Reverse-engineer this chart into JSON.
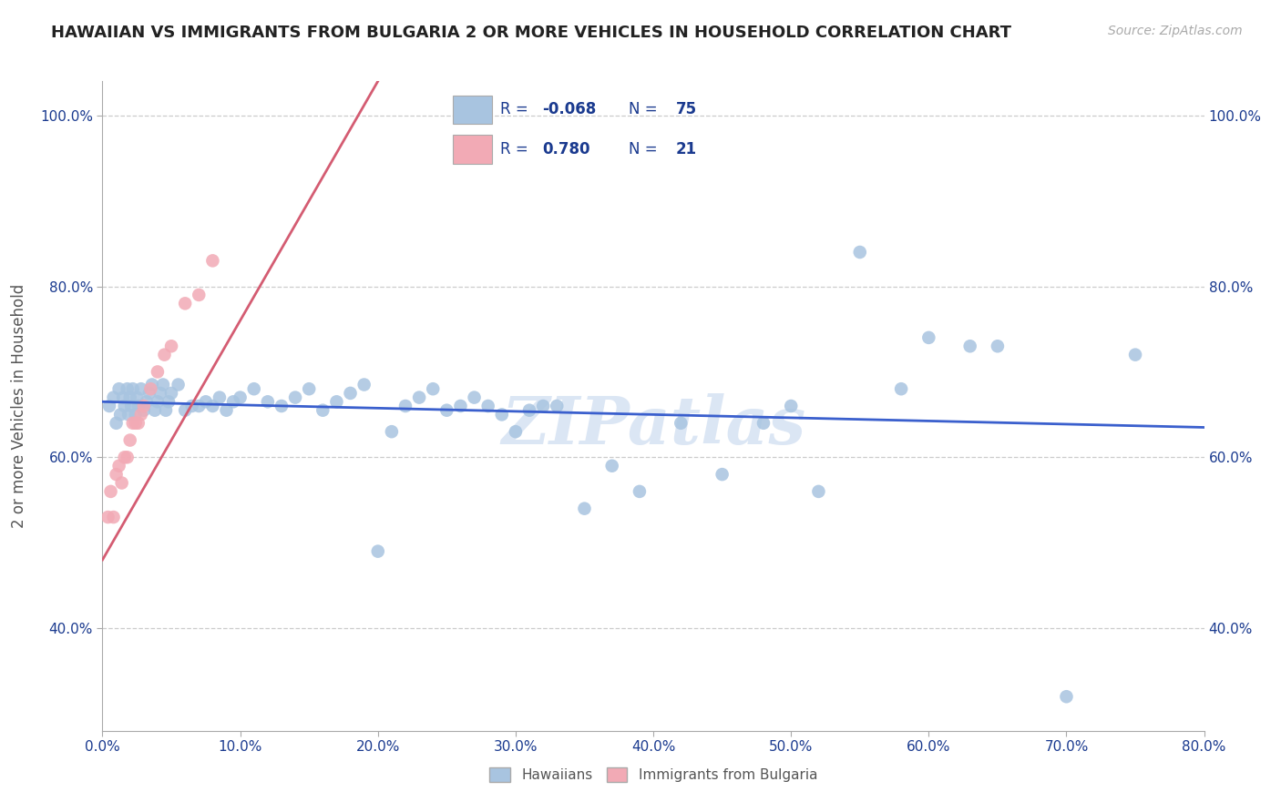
{
  "title": "HAWAIIAN VS IMMIGRANTS FROM BULGARIA 2 OR MORE VEHICLES IN HOUSEHOLD CORRELATION CHART",
  "source": "Source: ZipAtlas.com",
  "ylabel": "2 or more Vehicles in Household",
  "xmin": 0.0,
  "xmax": 0.8,
  "ymin": 0.28,
  "ymax": 1.04,
  "xtick_vals": [
    0.0,
    0.1,
    0.2,
    0.3,
    0.4,
    0.5,
    0.6,
    0.7,
    0.8
  ],
  "xtick_labels": [
    "0.0%",
    "10.0%",
    "20.0%",
    "30.0%",
    "40.0%",
    "50.0%",
    "60.0%",
    "70.0%",
    "80.0%"
  ],
  "ytick_vals": [
    0.4,
    0.6,
    0.8,
    1.0
  ],
  "ytick_labels": [
    "40.0%",
    "60.0%",
    "80.0%",
    "100.0%"
  ],
  "color_blue": "#a8c4e0",
  "color_pink": "#f2aab5",
  "color_blue_line": "#3a5fcd",
  "color_pink_line": "#d45c72",
  "color_grid": "#cccccc",
  "legend_text_color": "#1a3a8f",
  "watermark": "ZIPatlas",
  "watermark_color": "#cddcf0",
  "blue_line_x0": 0.0,
  "blue_line_y0": 0.665,
  "blue_line_x1": 0.8,
  "blue_line_y1": 0.635,
  "pink_line_x0": 0.0,
  "pink_line_y0": 0.48,
  "pink_line_x1": 0.2,
  "pink_line_y1": 1.04,
  "blue_dots_x": [
    0.005,
    0.008,
    0.01,
    0.012,
    0.013,
    0.015,
    0.016,
    0.018,
    0.019,
    0.02,
    0.021,
    0.022,
    0.024,
    0.025,
    0.026,
    0.028,
    0.03,
    0.032,
    0.034,
    0.036,
    0.038,
    0.04,
    0.042,
    0.044,
    0.046,
    0.048,
    0.05,
    0.055,
    0.06,
    0.065,
    0.07,
    0.075,
    0.08,
    0.085,
    0.09,
    0.095,
    0.1,
    0.11,
    0.12,
    0.13,
    0.14,
    0.15,
    0.16,
    0.17,
    0.18,
    0.19,
    0.2,
    0.21,
    0.22,
    0.23,
    0.24,
    0.25,
    0.26,
    0.27,
    0.28,
    0.29,
    0.3,
    0.31,
    0.32,
    0.33,
    0.35,
    0.37,
    0.39,
    0.42,
    0.45,
    0.48,
    0.5,
    0.52,
    0.55,
    0.58,
    0.6,
    0.63,
    0.65,
    0.7,
    0.75
  ],
  "blue_dots_y": [
    0.66,
    0.67,
    0.64,
    0.68,
    0.65,
    0.67,
    0.66,
    0.68,
    0.65,
    0.67,
    0.66,
    0.68,
    0.65,
    0.67,
    0.66,
    0.68,
    0.655,
    0.665,
    0.675,
    0.685,
    0.655,
    0.665,
    0.675,
    0.685,
    0.655,
    0.665,
    0.675,
    0.685,
    0.655,
    0.66,
    0.66,
    0.665,
    0.66,
    0.67,
    0.655,
    0.665,
    0.67,
    0.68,
    0.665,
    0.66,
    0.67,
    0.68,
    0.655,
    0.665,
    0.675,
    0.685,
    0.49,
    0.63,
    0.66,
    0.67,
    0.68,
    0.655,
    0.66,
    0.67,
    0.66,
    0.65,
    0.63,
    0.655,
    0.66,
    0.66,
    0.54,
    0.59,
    0.56,
    0.64,
    0.58,
    0.64,
    0.66,
    0.56,
    0.84,
    0.68,
    0.74,
    0.73,
    0.73,
    0.32,
    0.72
  ],
  "pink_dots_x": [
    0.004,
    0.006,
    0.008,
    0.01,
    0.012,
    0.014,
    0.016,
    0.018,
    0.02,
    0.022,
    0.024,
    0.026,
    0.028,
    0.03,
    0.035,
    0.04,
    0.045,
    0.05,
    0.06,
    0.07,
    0.08
  ],
  "pink_dots_y": [
    0.53,
    0.56,
    0.53,
    0.58,
    0.59,
    0.57,
    0.6,
    0.6,
    0.62,
    0.64,
    0.64,
    0.64,
    0.65,
    0.66,
    0.68,
    0.7,
    0.72,
    0.73,
    0.78,
    0.79,
    0.83
  ]
}
